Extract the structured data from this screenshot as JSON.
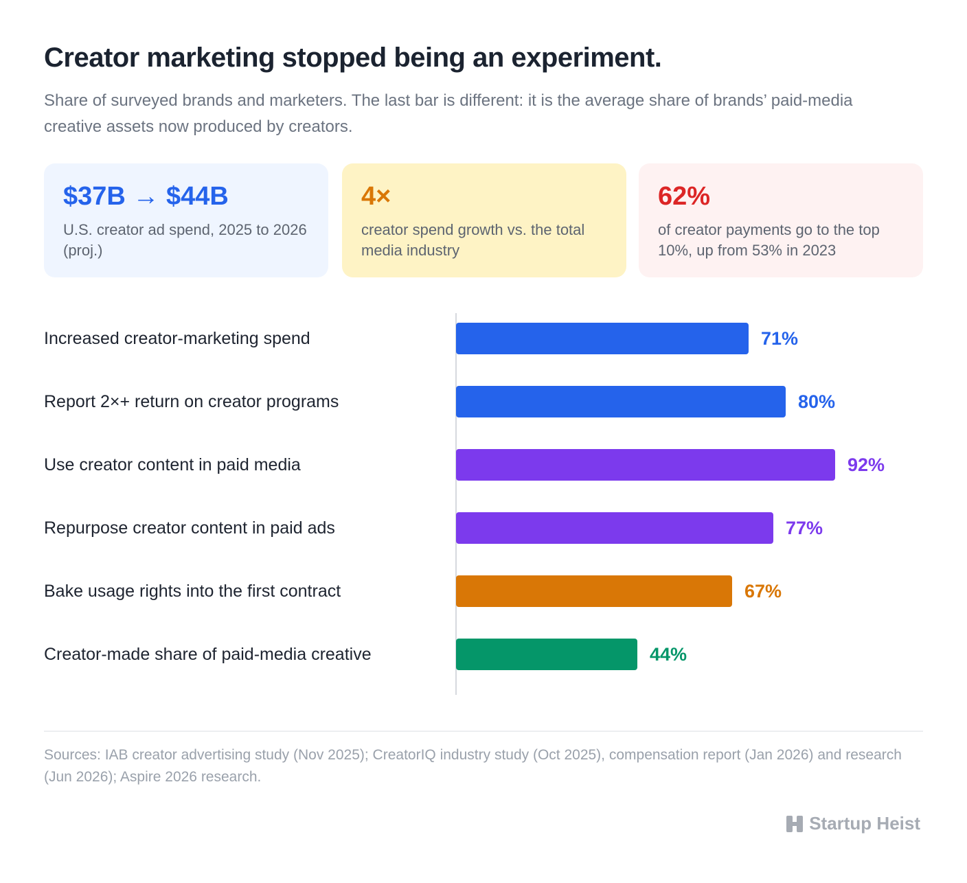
{
  "header": {
    "title": "Creator marketing stopped being an experiment.",
    "subtitle": "Share of surveyed brands and marketers. The last bar is different: it is the average share of brands’ paid-media creative assets now produced by creators."
  },
  "stats": [
    {
      "value": "$37B → $44B",
      "label": "U.S. creator ad spend, 2025 to 2026 (proj.)",
      "color": "#2563eb",
      "bg": "#eff5ff"
    },
    {
      "value": "4×",
      "label": "creator spend growth vs. the total media industry",
      "color": "#d97706",
      "bg": "#fef3c5"
    },
    {
      "value": "62%",
      "label": "of creator payments go to the top 10%, up from 53% in 2023",
      "color": "#dc2626",
      "bg": "#fef2f2"
    }
  ],
  "chart_data": {
    "type": "bar",
    "orientation": "horizontal",
    "categories": [
      "Increased creator-marketing spend",
      "Report 2×+ return on creator programs",
      "Use creator content in paid media",
      "Repurpose creator content in paid ads",
      "Bake usage rights into the first contract",
      "Creator-made share of paid-media creative"
    ],
    "values": [
      71,
      80,
      92,
      77,
      67,
      44
    ],
    "value_labels": [
      "71%",
      "80%",
      "92%",
      "77%",
      "67%",
      "44%"
    ],
    "colors": [
      "#2563eb",
      "#2563eb",
      "#7c3aed",
      "#7c3aed",
      "#d97706",
      "#059669"
    ],
    "unit": "%",
    "xlim": [
      0,
      100
    ],
    "grid": false,
    "legend": "none"
  },
  "footer": {
    "sources": "Sources: IAB creator advertising study (Nov 2025); CreatorIQ industry study (Oct 2025), compensation report (Jan 2026) and research (Jun 2026); Aspire 2026 research.",
    "brand": "Startup Heist"
  }
}
